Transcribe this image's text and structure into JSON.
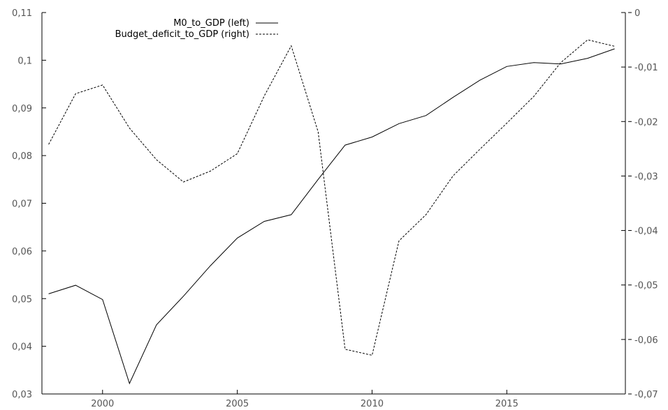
{
  "chart_data": {
    "type": "line",
    "title": "",
    "xlabel": "",
    "ylabel": "",
    "y2label": "",
    "x": [
      1998,
      1999,
      2000,
      2001,
      2002,
      2003,
      2004,
      2005,
      2006,
      2007,
      2008,
      2009,
      2010,
      2011,
      2012,
      2013,
      2014,
      2015,
      2016,
      2017,
      2018,
      2019
    ],
    "xlim": [
      1997.75,
      2019.4
    ],
    "x_ticks": [
      2000,
      2005,
      2010,
      2015
    ],
    "x_tick_labels": [
      "2000",
      "2005",
      "2010",
      "2015"
    ],
    "ylim": [
      0.03,
      0.11
    ],
    "y_ticks": [
      0.03,
      0.04,
      0.05,
      0.06,
      0.07,
      0.08,
      0.09,
      0.1,
      0.11
    ],
    "y_tick_labels": [
      "0,03",
      "0,04",
      "0,05",
      "0,06",
      "0,07",
      "0,08",
      "0,09",
      "0,1",
      "0,11"
    ],
    "y2lim": [
      -0.07,
      0
    ],
    "y2_ticks": [
      -0.07,
      -0.06,
      -0.05,
      -0.04,
      -0.03,
      -0.02,
      -0.01,
      0
    ],
    "y2_tick_labels": [
      "-0,07",
      "-0,06",
      "-0,05",
      "-0,04",
      "-0,03",
      "-0,02",
      "-0,01",
      "0"
    ],
    "grid": false,
    "legend_position": "top-center",
    "series": [
      {
        "name": "M0_to_GDP (left)",
        "axis": "left",
        "style": "solid",
        "color": "#000000",
        "values": [
          0.051,
          0.0528,
          0.0498,
          0.0322,
          0.0445,
          0.0505,
          0.0569,
          0.0627,
          0.0662,
          0.0676,
          0.075,
          0.0822,
          0.0839,
          0.0867,
          0.0884,
          0.0922,
          0.0958,
          0.0987,
          0.0995,
          0.0992,
          0.1004,
          0.1024
        ]
      },
      {
        "name": "Budget_deficit_to_GDP (right)",
        "axis": "right",
        "style": "dashed",
        "color": "#000000",
        "values": [
          -0.0242,
          -0.0149,
          -0.0133,
          -0.0212,
          -0.027,
          -0.0311,
          -0.0291,
          -0.0259,
          -0.0153,
          -0.0061,
          -0.0219,
          -0.0618,
          -0.0629,
          -0.0419,
          -0.0371,
          -0.03,
          -0.0251,
          -0.0203,
          -0.0154,
          -0.0092,
          -0.005,
          -0.0062
        ]
      }
    ]
  }
}
